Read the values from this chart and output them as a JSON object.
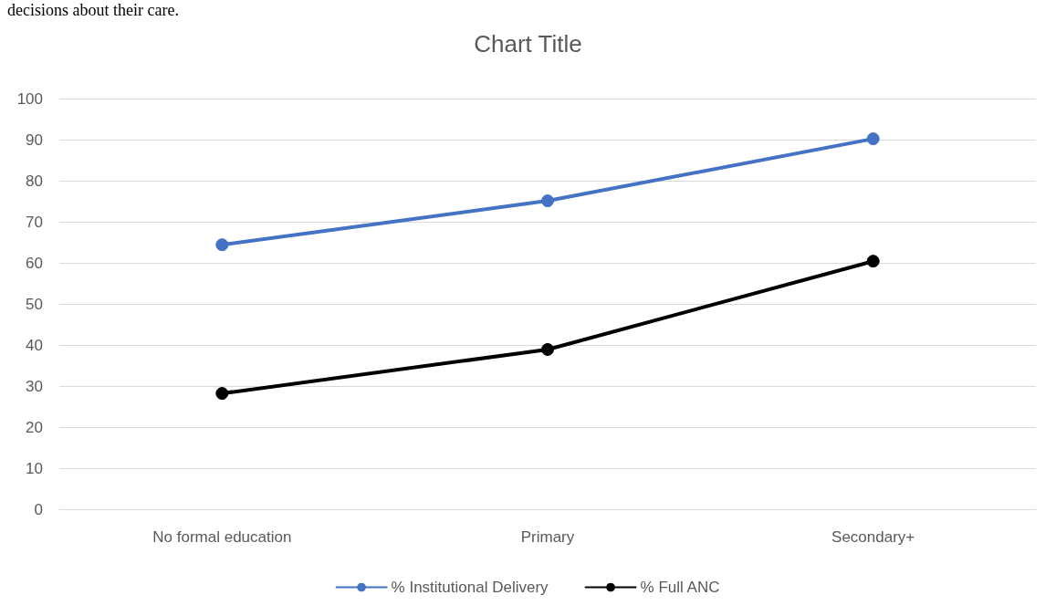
{
  "chart_data": {
    "type": "line",
    "title": "Chart Title",
    "annotations": [
      "decisions about their care."
    ],
    "categories": [
      "No formal education",
      "Primary",
      "Secondary+"
    ],
    "series": [
      {
        "name": "% Institutional Delivery",
        "color": "#4472c4",
        "values": [
          64.4,
          75.1,
          90.2
        ]
      },
      {
        "name": "% Full ANC",
        "color": "#000000",
        "values": [
          28.2,
          38.9,
          60.4
        ]
      }
    ],
    "ylim": [
      0,
      100
    ],
    "yticks": [
      0,
      10,
      20,
      30,
      40,
      50,
      60,
      70,
      80,
      90,
      100
    ],
    "grid": "y",
    "legend": "bottom",
    "marker": "circle",
    "line_style": "solid"
  }
}
